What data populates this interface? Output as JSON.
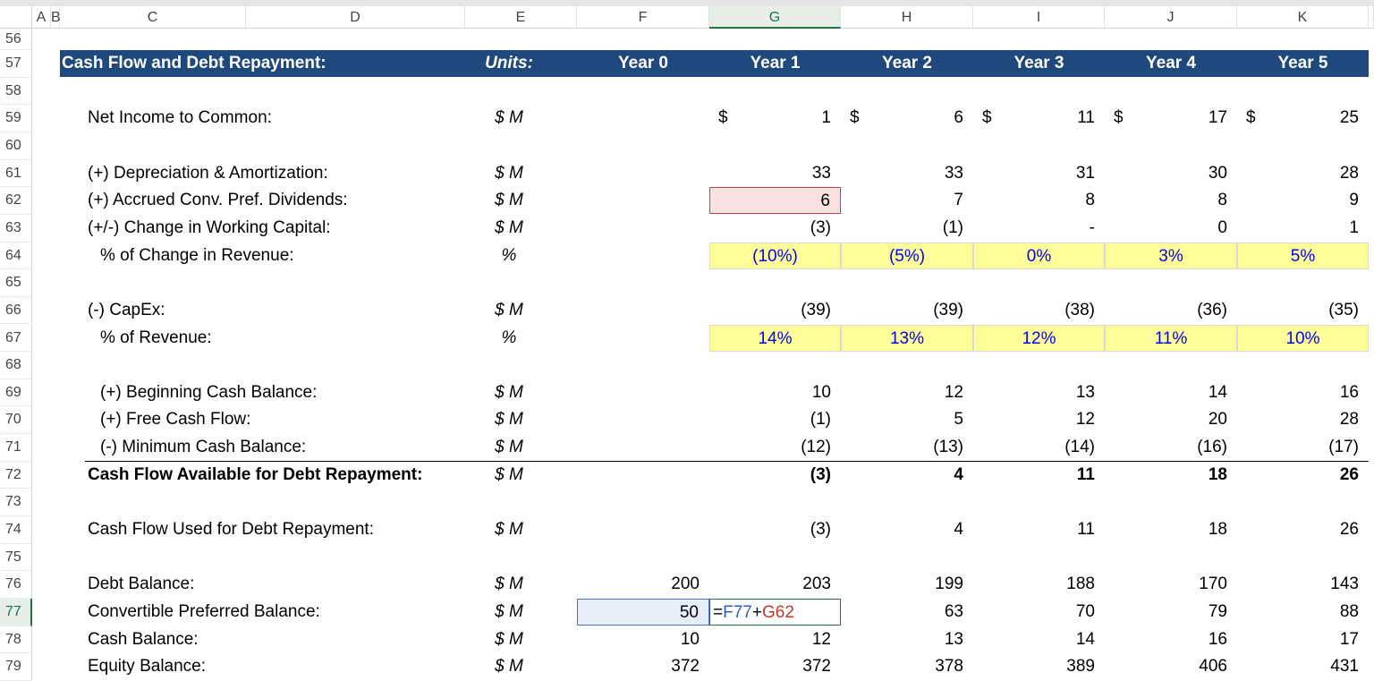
{
  "columns": [
    "A",
    "B",
    "C",
    "D",
    "E",
    "F",
    "G",
    "H",
    "I",
    "J",
    "K"
  ],
  "selected_column": "G",
  "selected_row": "77",
  "row_numbers": [
    "56",
    "57",
    "58",
    "59",
    "60",
    "61",
    "62",
    "63",
    "64",
    "65",
    "66",
    "67",
    "68",
    "69",
    "70",
    "71",
    "72",
    "73",
    "74",
    "75",
    "76",
    "77",
    "78",
    "79"
  ],
  "header": {
    "title": "Cash Flow and Debt Repayment:",
    "units": "Units:",
    "years": [
      "Year 0",
      "Year 1",
      "Year 2",
      "Year 3",
      "Year 4",
      "Year 5"
    ],
    "color": "#1f497d"
  },
  "rows": [
    {
      "row": "59",
      "label": "Net Income to Common:",
      "indent": 1,
      "units": "$ M",
      "dollar": true,
      "values": [
        "",
        "1",
        "6",
        "11",
        "17",
        "25"
      ]
    },
    {
      "row": "61",
      "label": "(+) Depreciation & Amortization:",
      "indent": 1,
      "units": "$ M",
      "values": [
        "",
        "33",
        "33",
        "31",
        "30",
        "28"
      ]
    },
    {
      "row": "62",
      "label": "(+) Accrued Conv. Pref. Dividends:",
      "indent": 1,
      "units": "$ M",
      "values": [
        "",
        "6",
        "7",
        "8",
        "8",
        "9"
      ]
    },
    {
      "row": "63",
      "label": "(+/-) Change in Working Capital:",
      "indent": 1,
      "units": "$ M",
      "values": [
        "",
        "(3)",
        "(1)",
        "-",
        "0",
        "1"
      ]
    },
    {
      "row": "64",
      "label": "% of Change in Revenue:",
      "indent": 2,
      "units": "%",
      "input": true,
      "values": [
        "",
        "(10%)",
        "(5%)",
        "0%",
        "3%",
        "5%"
      ]
    },
    {
      "row": "66",
      "label": "(-) CapEx:",
      "indent": 1,
      "units": "$ M",
      "values": [
        "",
        "(39)",
        "(39)",
        "(38)",
        "(36)",
        "(35)"
      ]
    },
    {
      "row": "67",
      "label": "% of Revenue:",
      "indent": 2,
      "units": "%",
      "input": true,
      "values": [
        "",
        "14%",
        "13%",
        "12%",
        "11%",
        "10%"
      ]
    },
    {
      "row": "69",
      "label": "(+) Beginning Cash Balance:",
      "indent": 2,
      "units": "$ M",
      "values": [
        "",
        "10",
        "12",
        "13",
        "14",
        "16"
      ]
    },
    {
      "row": "70",
      "label": "(+) Free Cash Flow:",
      "indent": 2,
      "units": "$ M",
      "values": [
        "",
        "(1)",
        "5",
        "12",
        "20",
        "28"
      ]
    },
    {
      "row": "71",
      "label": "(-) Minimum Cash Balance:",
      "indent": 2,
      "units": "$ M",
      "values": [
        "",
        "(12)",
        "(13)",
        "(14)",
        "(16)",
        "(17)"
      ]
    },
    {
      "row": "72",
      "label": "Cash Flow Available for Debt Repayment:",
      "indent": 1,
      "units": "$ M",
      "bold": true,
      "values": [
        "",
        "(3)",
        "4",
        "11",
        "18",
        "26"
      ]
    },
    {
      "row": "74",
      "label": "Cash Flow Used for Debt Repayment:",
      "indent": 1,
      "units": "$ M",
      "values": [
        "",
        "(3)",
        "4",
        "11",
        "18",
        "26"
      ]
    },
    {
      "row": "76",
      "label": "Debt Balance:",
      "indent": 1,
      "units": "$ M",
      "values": [
        "200",
        "203",
        "199",
        "188",
        "170",
        "143"
      ]
    },
    {
      "row": "77",
      "label": "Convertible Preferred Balance:",
      "indent": 1,
      "units": "$ M",
      "values": [
        "50",
        "",
        "63",
        "70",
        "79",
        "88"
      ]
    },
    {
      "row": "78",
      "label": "Cash Balance:",
      "indent": 1,
      "units": "$ M",
      "values": [
        "10",
        "12",
        "13",
        "14",
        "16",
        "17"
      ]
    },
    {
      "row": "79",
      "label": "Equity Balance:",
      "indent": 1,
      "units": "$ M",
      "values": [
        "372",
        "372",
        "378",
        "389",
        "406",
        "431"
      ]
    }
  ],
  "dollar_sign": "$",
  "formula": {
    "eq": "=",
    "ref1": "F77",
    "op": "+",
    "ref2": "G62"
  },
  "colors": {
    "input_fill": "#ffff99",
    "input_text": "#0000ff",
    "highlight_fill": "#f9e1e1",
    "selection": "#4472c4",
    "edit_border": "#217346"
  }
}
